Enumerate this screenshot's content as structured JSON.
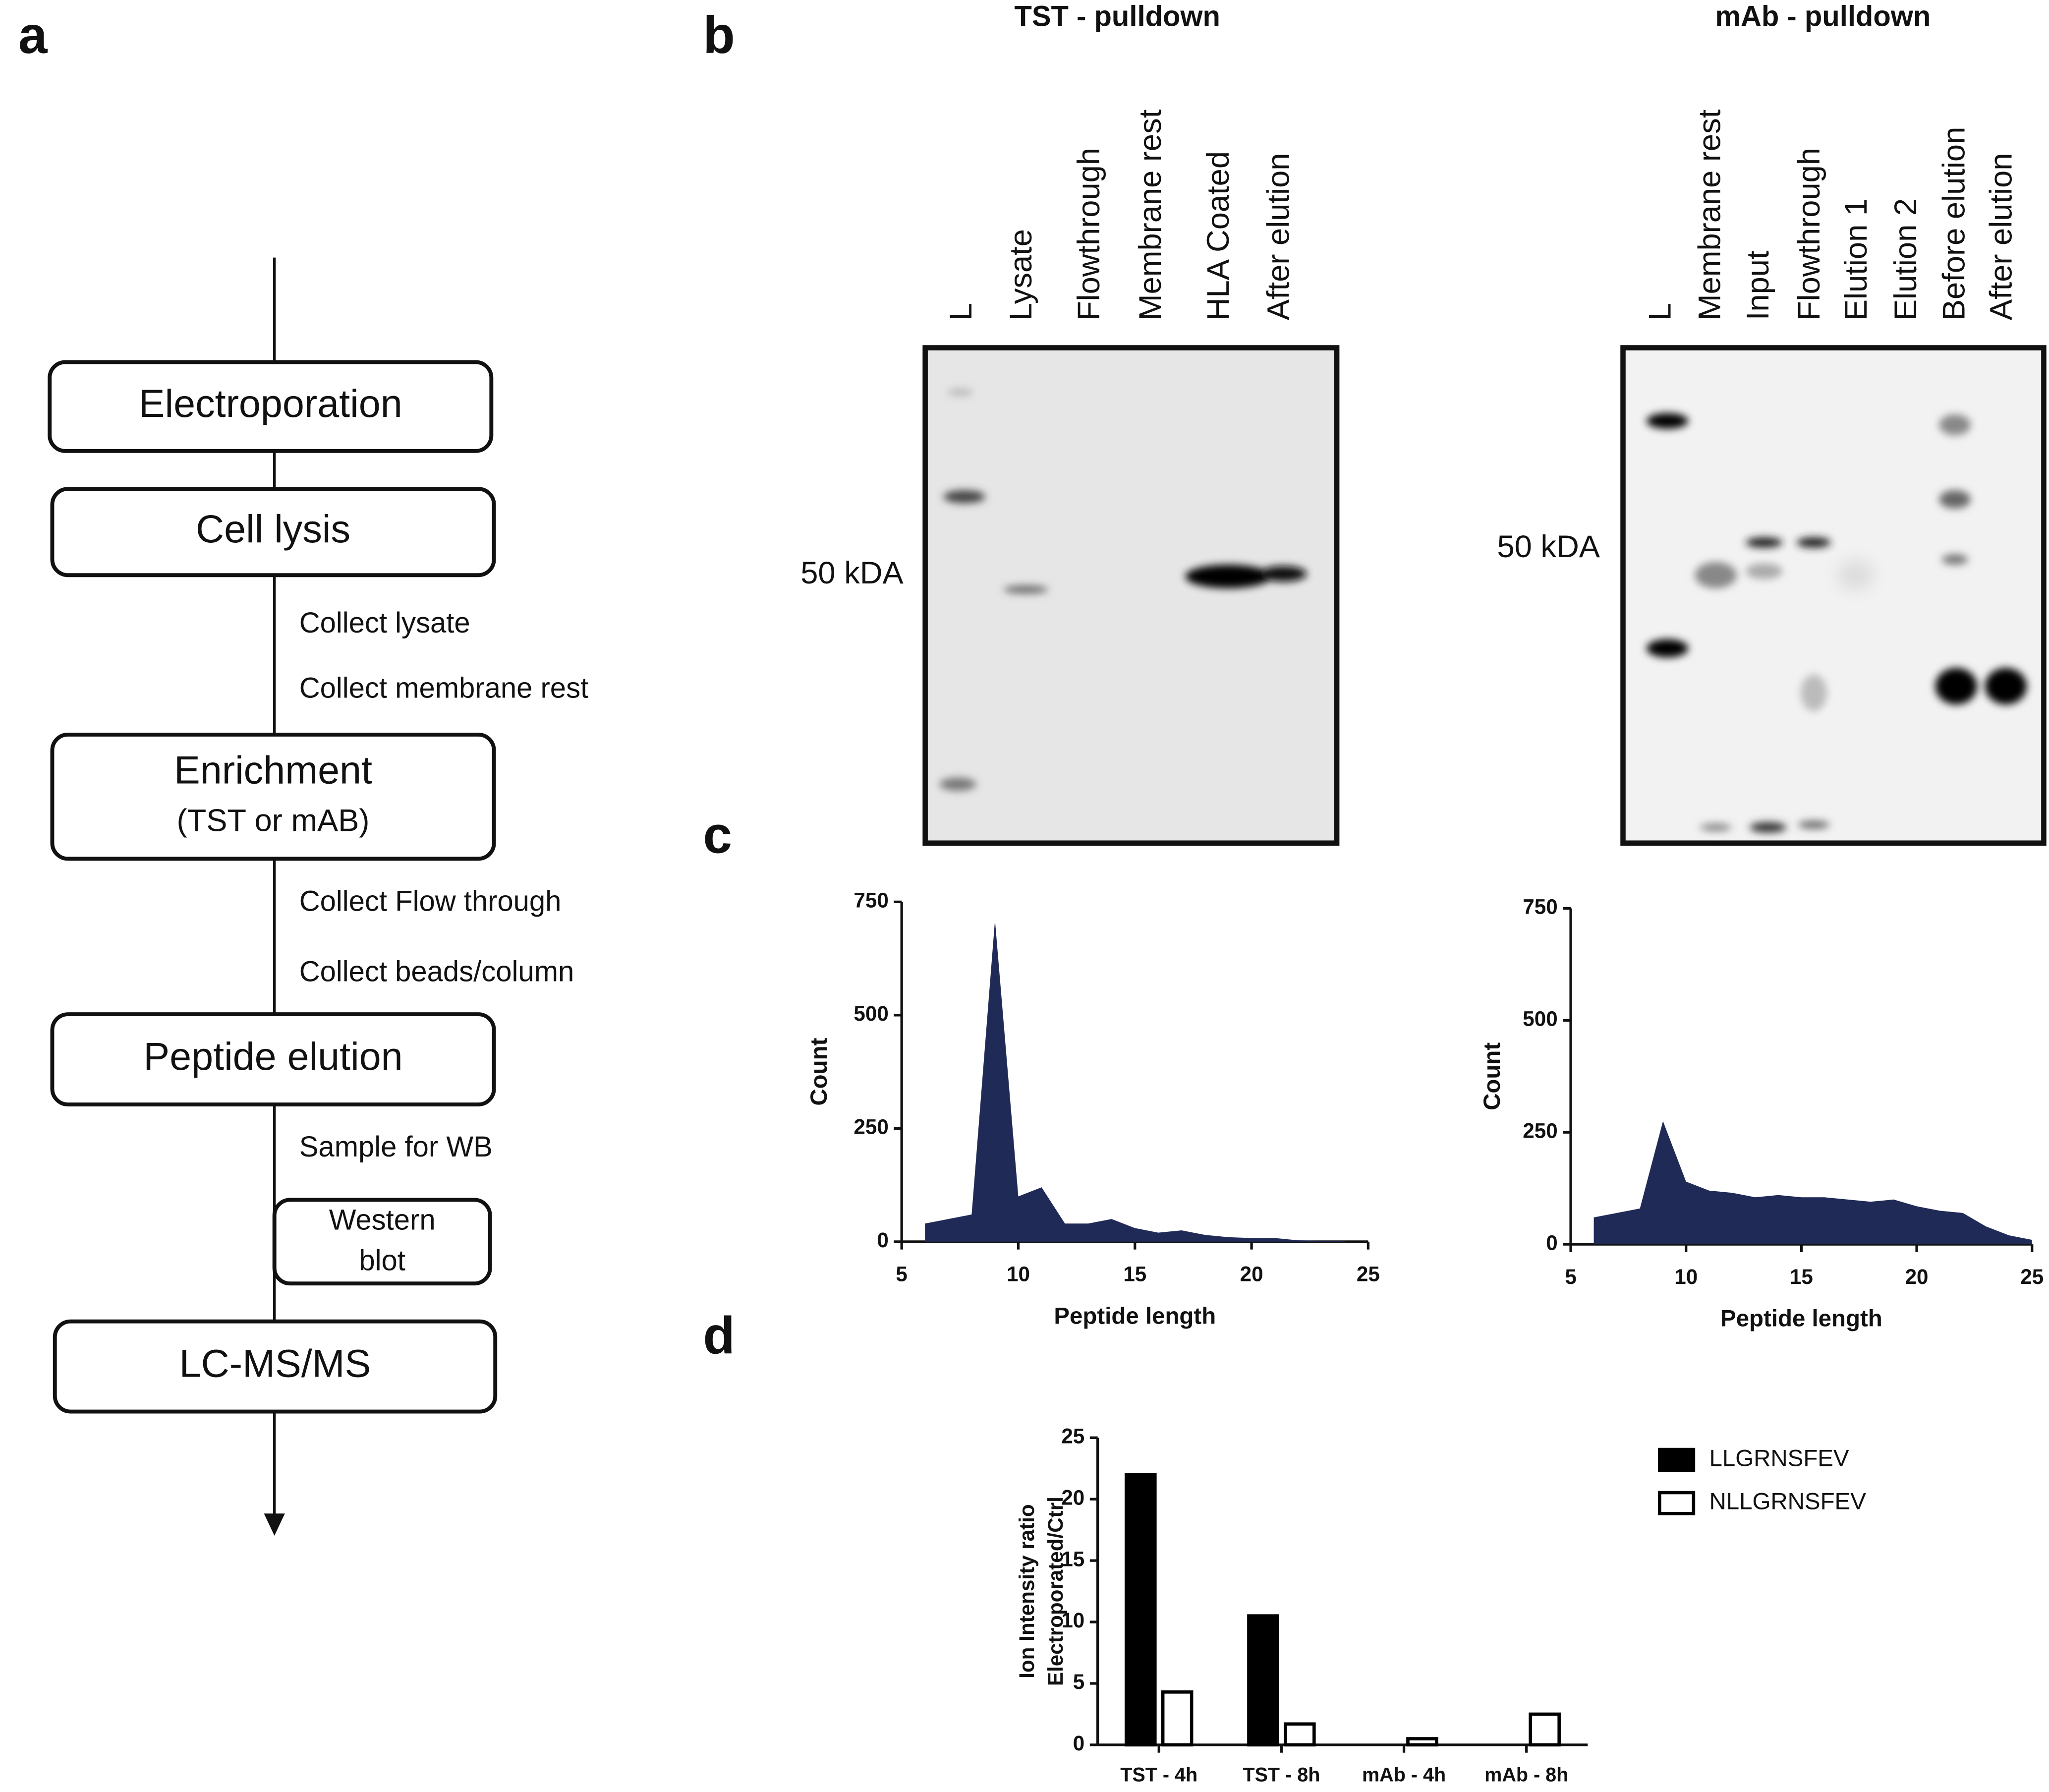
{
  "panel_labels": [
    "a",
    "b",
    "c",
    "d"
  ],
  "flowchart": {
    "boxes": [
      {
        "lines": [
          "Electroporation"
        ]
      },
      {
        "lines": [
          "Cell lysis"
        ]
      },
      {
        "lines": [
          "Enrichment",
          "(TST or mAB)"
        ]
      },
      {
        "lines": [
          "Peptide elution"
        ]
      },
      {
        "lines": [
          "Western",
          "blot"
        ]
      },
      {
        "lines": [
          "LC-MS/MS"
        ]
      }
    ],
    "notes": [
      "Collect lysate",
      "Collect membrane rest",
      "Collect Flow through",
      "Collect beads/column",
      "Sample for WB"
    ]
  },
  "blots": [
    {
      "title": "TST - pulldown",
      "marker": "50 kDA",
      "lanes": [
        "L",
        "Lysate",
        "Flowthrough",
        "Membrane rest",
        "HLA Coated",
        "After elution"
      ]
    },
    {
      "title": "mAb - pulldown",
      "marker": "50 kDA",
      "lanes": [
        "L",
        "Membrane rest",
        "Input",
        "Flowthrough",
        "Elution 1",
        "Elution 2",
        "Before elution",
        "After elution"
      ]
    }
  ],
  "chart_data": [
    {
      "type": "area",
      "xlabel": "Peptide length",
      "ylabel": "Count",
      "color": "#1f2a56",
      "x": [
        6,
        7,
        8,
        9,
        10,
        11,
        12,
        13,
        14,
        15,
        16,
        17,
        18,
        19,
        20,
        21,
        22,
        23,
        24
      ],
      "values": [
        40,
        50,
        60,
        710,
        100,
        120,
        40,
        40,
        50,
        30,
        20,
        25,
        15,
        10,
        8,
        8,
        3,
        2,
        1
      ],
      "xlim": [
        5,
        25
      ],
      "xticks": [
        5,
        10,
        15,
        20,
        25
      ],
      "ylim": [
        0,
        750
      ],
      "yticks": [
        0,
        250,
        500,
        750
      ]
    },
    {
      "type": "area",
      "xlabel": "Peptide length",
      "ylabel": "Count",
      "color": "#1f2a56",
      "x": [
        6,
        7,
        8,
        9,
        10,
        11,
        12,
        13,
        14,
        15,
        16,
        17,
        18,
        19,
        20,
        21,
        22,
        23,
        24,
        25
      ],
      "values": [
        60,
        70,
        80,
        275,
        140,
        120,
        115,
        105,
        110,
        105,
        105,
        100,
        95,
        100,
        85,
        75,
        70,
        40,
        20,
        10
      ],
      "xlim": [
        5,
        25
      ],
      "xticks": [
        5,
        10,
        15,
        20,
        25
      ],
      "ylim": [
        0,
        750
      ],
      "yticks": [
        0,
        250,
        500,
        750
      ]
    },
    {
      "type": "bar",
      "ylabel": [
        "Ion Intensity ratio",
        "Electroporated/Ctrl"
      ],
      "edgecolor": "#000000",
      "categories": [
        "TST - 4h",
        "TST - 8h",
        "mAb - 4h",
        "mAb - 8h"
      ],
      "series": [
        {
          "name": "LLGRNSFEV",
          "color": "#000000",
          "values": [
            22,
            10.5,
            0,
            0
          ]
        },
        {
          "name": "NLLGRNSFEV",
          "color": "#ffffff",
          "values": [
            4.3,
            1.7,
            0.5,
            2.5
          ]
        }
      ],
      "ylim": [
        0,
        25
      ],
      "yticks": [
        0,
        5,
        10,
        15,
        20,
        25
      ],
      "legend": "right"
    }
  ]
}
